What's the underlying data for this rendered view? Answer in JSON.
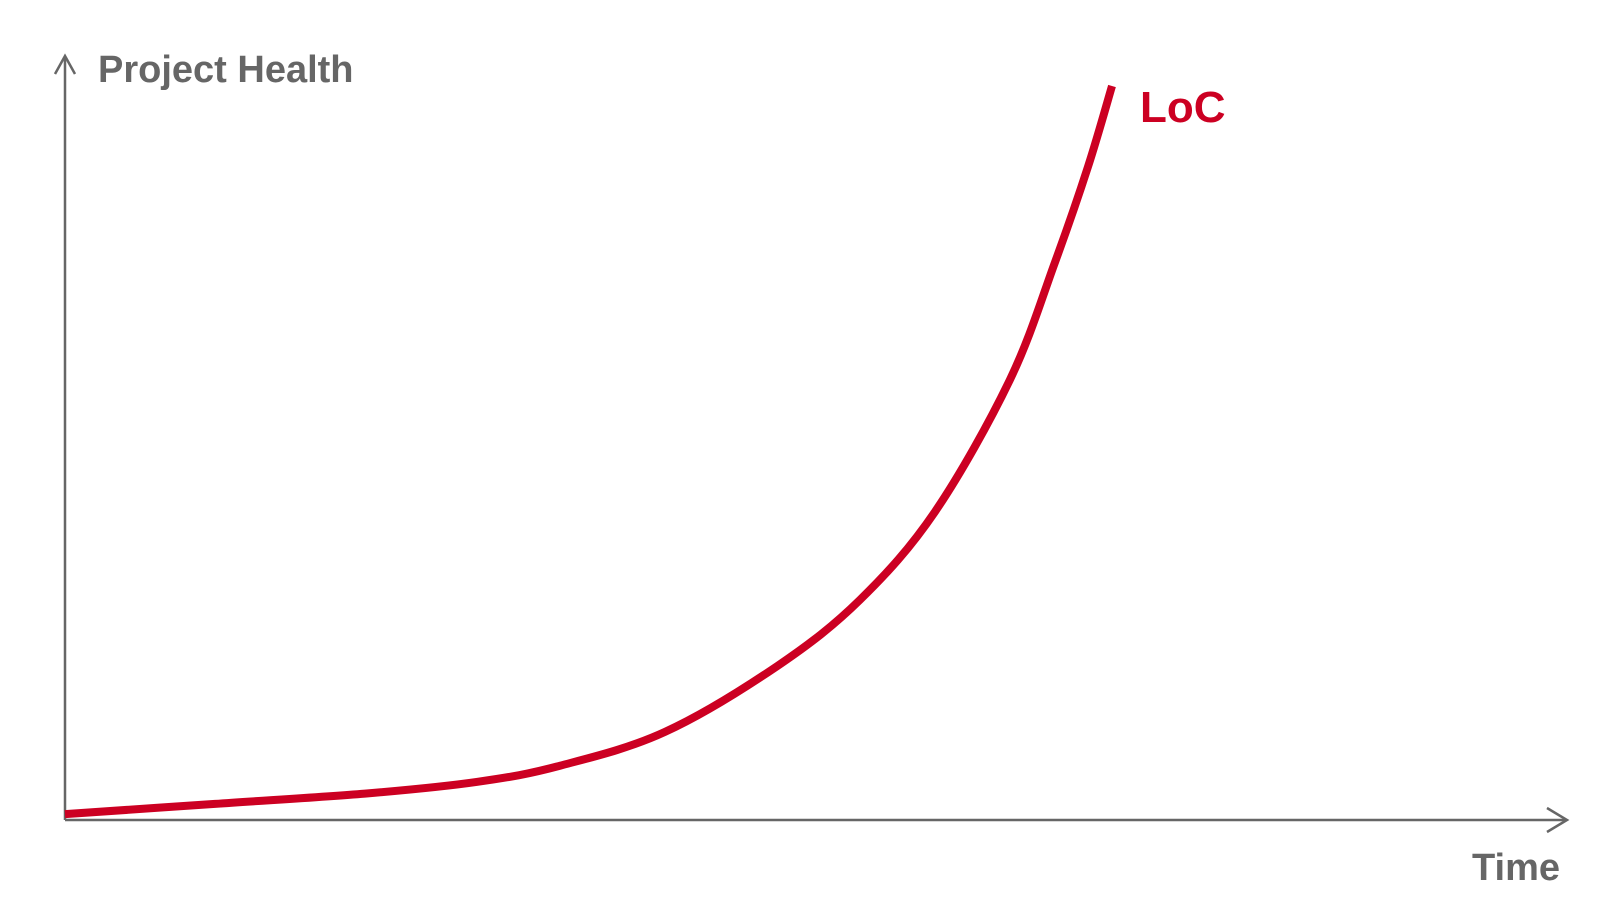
{
  "chart_data": {
    "type": "line",
    "ylabel": "Project Health",
    "xlabel": "Time",
    "grid": false,
    "axis_color": "#666666",
    "series": [
      {
        "name": "LoC",
        "color": "#cc0022",
        "x": [
          0,
          10,
          20,
          27.5,
          33,
          40,
          47.5,
          53,
          58,
          63,
          66,
          68.2,
          69.8
        ],
        "y": [
          0.8,
          2.2,
          3.6,
          5.2,
          7.4,
          12,
          21,
          30,
          42,
          60,
          76,
          89,
          100
        ]
      }
    ],
    "xlim": [
      0,
      100
    ],
    "ylim": [
      0,
      100
    ]
  }
}
